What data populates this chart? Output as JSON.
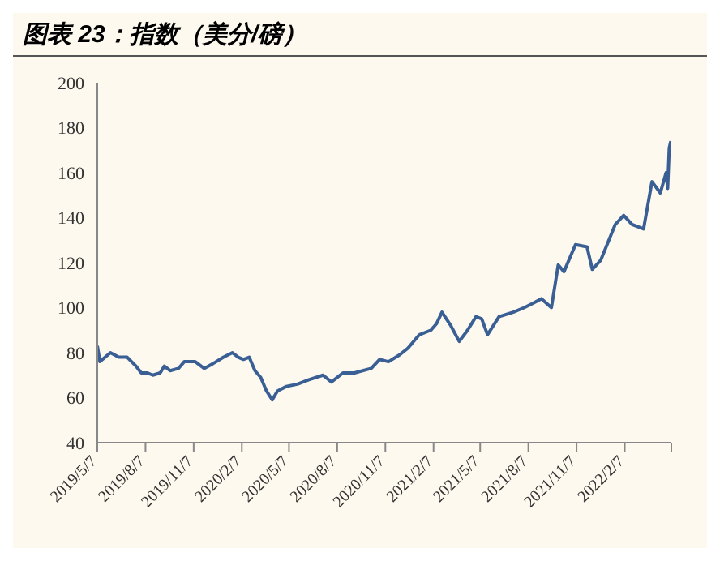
{
  "chart_data": {
    "type": "line",
    "title": "图表 23：指数（美分/磅）",
    "x": [
      "2019-05-07",
      "2019-05-12",
      "2019-06-01",
      "2019-06-17",
      "2019-07-03",
      "2019-07-20",
      "2019-07-30",
      "2019-08-10",
      "2019-08-21",
      "2019-09-04",
      "2019-09-12",
      "2019-09-23",
      "2019-10-09",
      "2019-10-20",
      "2019-11-10",
      "2019-11-27",
      "2019-12-13",
      "2020-01-03",
      "2020-01-20",
      "2020-01-31",
      "2020-02-10",
      "2020-02-21",
      "2020-03-03",
      "2020-03-14",
      "2020-03-25",
      "2020-04-05",
      "2020-04-15",
      "2020-05-02",
      "2020-05-23",
      "2020-06-14",
      "2020-07-11",
      "2020-07-27",
      "2020-08-18",
      "2020-09-09",
      "2020-10-11",
      "2020-10-27",
      "2020-11-13",
      "2020-12-04",
      "2020-12-20",
      "2021-01-11",
      "2021-02-02",
      "2021-02-13",
      "2021-02-23",
      "2021-03-12",
      "2021-03-28",
      "2021-04-13",
      "2021-04-29",
      "2021-05-10",
      "2021-05-21",
      "2021-06-12",
      "2021-07-09",
      "2021-07-30",
      "2021-08-16",
      "2021-09-01",
      "2021-09-20",
      "2021-10-03",
      "2021-10-14",
      "2021-11-05",
      "2021-11-27",
      "2021-12-07",
      "2021-12-23",
      "2022-01-20",
      "2022-02-05",
      "2022-02-21",
      "2022-03-15",
      "2022-03-31",
      "2022-04-16",
      "2022-04-27",
      "2022-04-30",
      "2022-05-03",
      "2022-05-06"
    ],
    "series": [
      {
        "color": "#3a5f94",
        "values": [
          83,
          76,
          80,
          78,
          78,
          74,
          71,
          71,
          70,
          71,
          74,
          72,
          73,
          76,
          76,
          73,
          75,
          78,
          80,
          78,
          77,
          78,
          72,
          69,
          63,
          59,
          63,
          65,
          66,
          68,
          70,
          67,
          71,
          71,
          73,
          77,
          76,
          79,
          82,
          88,
          90,
          93,
          98,
          92,
          85,
          90,
          96,
          95,
          88,
          96,
          98,
          100,
          102,
          104,
          100,
          119,
          116,
          128,
          127,
          117,
          121,
          137,
          141,
          137,
          135,
          156,
          151,
          160,
          153,
          171,
          174
        ]
      }
    ],
    "xlim": [
      "2019-05-07",
      "2022-05-07"
    ],
    "xticks": [
      {
        "value": "2019-05-07",
        "label": "2019/5/7"
      },
      {
        "value": "2019-08-07",
        "label": "2019/8/7"
      },
      {
        "value": "2019-11-07",
        "label": "2019/11/7"
      },
      {
        "value": "2020-02-07",
        "label": "2020/2/7"
      },
      {
        "value": "2020-05-07",
        "label": "2020/5/7"
      },
      {
        "value": "2020-08-07",
        "label": "2020/8/7"
      },
      {
        "value": "2020-11-07",
        "label": "2020/11/7"
      },
      {
        "value": "2021-02-07",
        "label": "2021/2/7"
      },
      {
        "value": "2021-05-07",
        "label": "2021/5/7"
      },
      {
        "value": "2021-08-07",
        "label": "2021/8/7"
      },
      {
        "value": "2021-11-07",
        "label": "2021/11/7"
      },
      {
        "value": "2022-02-07",
        "label": "2022/2/7"
      },
      {
        "value": "2022-05-07",
        "label": null
      }
    ],
    "ylim": [
      40,
      200
    ],
    "yticks": [
      40,
      60,
      80,
      100,
      120,
      140,
      160,
      180,
      200
    ],
    "grid": false,
    "legend": false,
    "marker": "none",
    "line_style": "solid"
  }
}
